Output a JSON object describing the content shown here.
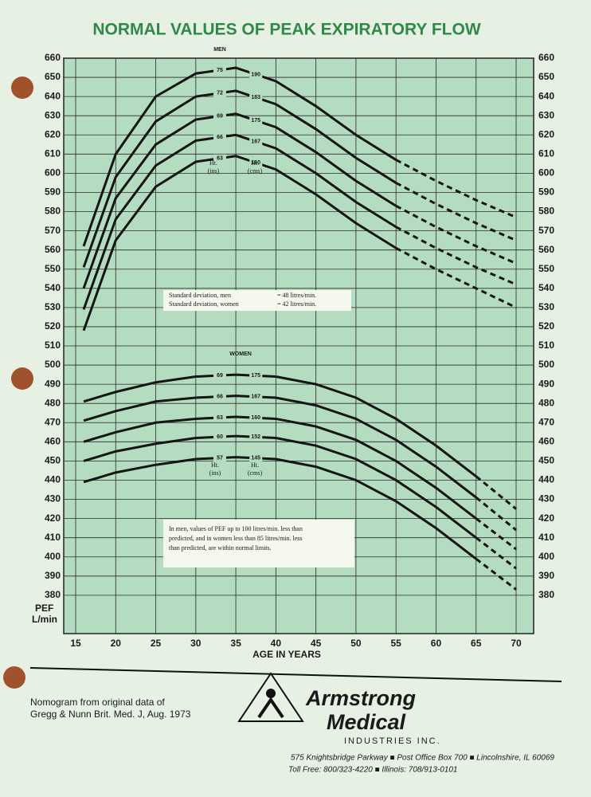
{
  "chart_data": {
    "type": "line",
    "title": "NORMAL VALUES OF PEAK EXPIRATORY FLOW",
    "x_label": "AGE IN YEARS",
    "y_label": [
      "PEF",
      "L/min"
    ],
    "x": [
      16,
      20,
      25,
      30,
      35,
      40,
      45,
      50,
      55,
      60,
      65,
      70
    ],
    "xlim": [
      15,
      70
    ],
    "xticks": [
      15,
      20,
      25,
      30,
      35,
      40,
      45,
      50,
      55,
      60,
      65,
      70
    ],
    "ylim": [
      360,
      660
    ],
    "yticks": [
      380,
      390,
      400,
      410,
      420,
      430,
      440,
      450,
      460,
      470,
      480,
      490,
      500,
      510,
      520,
      530,
      540,
      550,
      560,
      570,
      580,
      590,
      600,
      610,
      620,
      630,
      640,
      650,
      660
    ],
    "grid": true,
    "series": [
      {
        "name": "75",
        "cm": "190",
        "color": "#151515",
        "dashed_from": 55,
        "values": [
          562,
          610,
          640,
          652,
          655,
          648,
          635,
          620,
          607,
          596,
          586,
          577
        ]
      },
      {
        "name": "72",
        "cm": "183",
        "color": "#151515",
        "dashed_from": 55,
        "values": [
          551,
          598,
          627,
          640,
          643,
          636,
          623,
          608,
          595,
          584,
          574,
          565
        ]
      },
      {
        "name": "69",
        "cm": "175",
        "color": "#151515",
        "dashed_from": 55,
        "values": [
          540,
          587,
          615,
          628,
          631,
          624,
          611,
          596,
          583,
          572,
          562,
          553
        ]
      },
      {
        "name": "66",
        "cm": "167",
        "color": "#151515",
        "dashed_from": 55,
        "values": [
          529,
          576,
          604,
          617,
          620,
          613,
          600,
          585,
          572,
          561,
          551,
          542
        ]
      },
      {
        "name": "63",
        "cm": "160",
        "color": "#151515",
        "dashed_from": 55,
        "values": [
          518,
          565,
          593,
          606,
          609,
          602,
          589,
          574,
          561,
          550,
          540,
          530
        ]
      },
      {
        "name": "69",
        "cm": "175",
        "color": "#151515",
        "dashed_from": 65,
        "values": [
          481,
          486,
          491,
          494,
          495,
          494,
          490,
          483,
          472,
          458,
          442,
          425
        ]
      },
      {
        "name": "66",
        "cm": "167",
        "color": "#151515",
        "dashed_from": 65,
        "values": [
          471,
          476,
          481,
          483,
          484,
          483,
          479,
          472,
          461,
          447,
          431,
          414
        ]
      },
      {
        "name": "63",
        "cm": "160",
        "color": "#151515",
        "dashed_from": 65,
        "values": [
          460,
          465,
          470,
          472,
          473,
          472,
          468,
          461,
          450,
          436,
          420,
          404
        ]
      },
      {
        "name": "60",
        "cm": "152",
        "color": "#151515",
        "dashed_from": 65,
        "values": [
          450,
          455,
          459,
          462,
          463,
          462,
          458,
          451,
          440,
          426,
          410,
          394
        ]
      },
      {
        "name": "57",
        "cm": "145",
        "color": "#151515",
        "dashed_from": 65,
        "values": [
          439,
          444,
          448,
          451,
          452,
          451,
          447,
          440,
          429,
          415,
          399,
          383
        ]
      }
    ],
    "annotations": {
      "men": "MEN",
      "women": "WOMEN",
      "ht": "Ht.",
      "ins": "(ins)",
      "cms": "(cms)",
      "sd_men": "Standard deviation, men",
      "sd_men_value": "= 48 litres/min.",
      "sd_women": "Standard deviation, women",
      "sd_women_value": "= 42 litres/min.",
      "note": [
        "In men, values of PEF up to 100 litres/min. less than",
        "predicted, and in women less than 85 litres/min. less",
        "than predicted, are within normal limits."
      ]
    }
  },
  "footer": {
    "source": [
      "Nomogram from original data of",
      "Gregg & Nunn Brit. Med. J, Aug. 1973"
    ],
    "brand": [
      "Armstrong",
      "Medical"
    ],
    "subbrand": "INDUSTRIES INC.",
    "address": "575 Knightsbridge Parkway ■ Post Office Box 700 ■ Lincolnshire, IL 60069",
    "phone": "Toll Free: 800/323-4220 ■ Illinois: 708/913-0101"
  }
}
